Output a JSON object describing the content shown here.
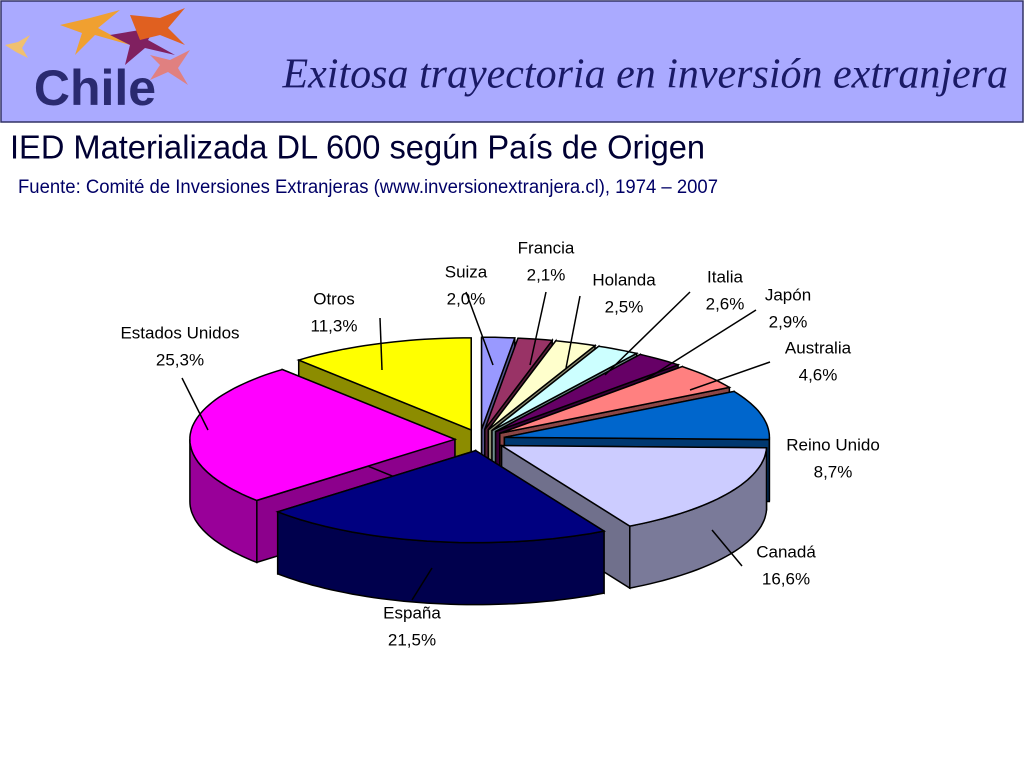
{
  "header": {
    "logo": "Chile",
    "title": "Exitosa trayectoria en inversión extranjera"
  },
  "chart_data": {
    "type": "pie",
    "title": "IED Materializada DL 600 según País de Origen",
    "subtitle": "Fuente: Comité de Inversiones Extranjeras (www.inversionextranjera.cl), 1974 – 2007",
    "categories": [
      "Suiza",
      "Francia",
      "Holanda",
      "Italia",
      "Japón",
      "Australia",
      "Reino Unido",
      "Canadá",
      "España",
      "Estados Unidos",
      "Otros"
    ],
    "values": [
      2.0,
      2.1,
      2.5,
      2.6,
      2.9,
      4.6,
      8.7,
      16.6,
      21.5,
      25.3,
      11.3
    ],
    "value_labels": [
      "2,0%",
      "2,1%",
      "2,5%",
      "2,6%",
      "2,9%",
      "4,6%",
      "8,7%",
      "16,6%",
      "21,5%",
      "25,3%",
      "11,3%"
    ],
    "colors": [
      "#9999ff",
      "#993366",
      "#ffffcc",
      "#ccffff",
      "#660066",
      "#ff8080",
      "#0066cc",
      "#ccccff",
      "#000080",
      "#ff00ff",
      "#ffff00"
    ]
  }
}
